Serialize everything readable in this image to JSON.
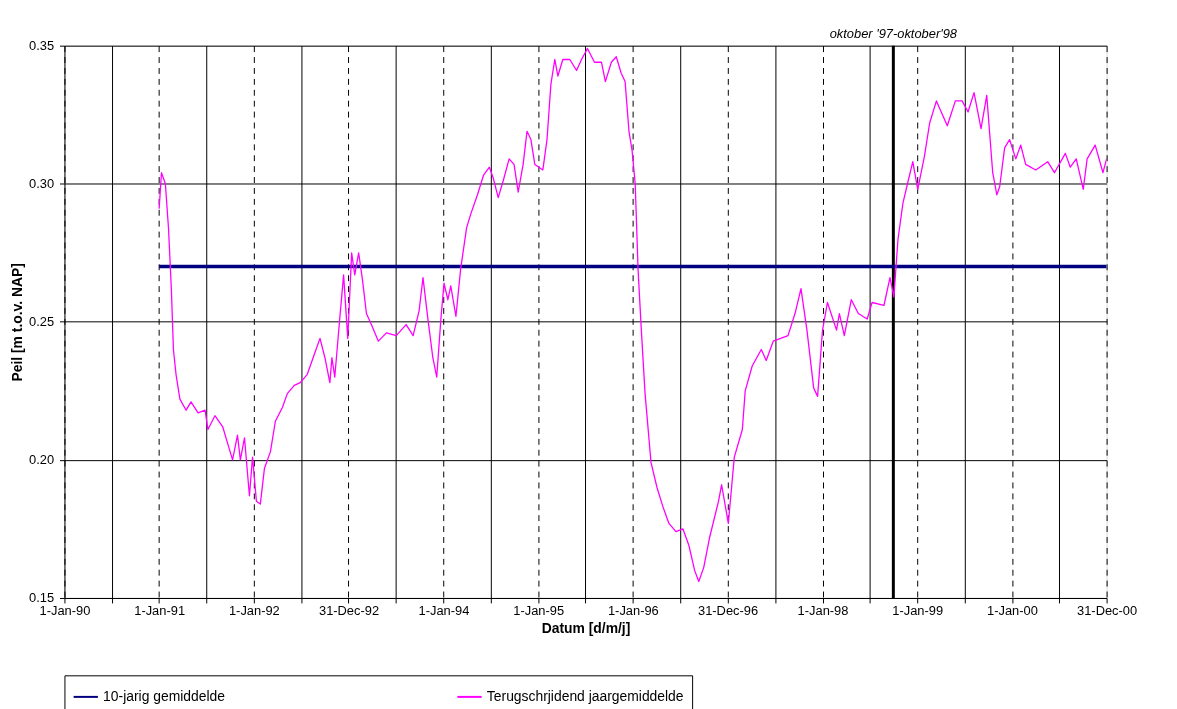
{
  "chart_data": {
    "type": "line",
    "xlabel": "Datum [d/m/j]",
    "ylabel": "Peil [m t.o.v. NAP]",
    "legend": "bottom",
    "grid": true,
    "xlim": [
      "1990-01-01",
      "2000-12-31"
    ],
    "ylim": [
      0.15,
      0.35
    ],
    "yticks": [
      {
        "value": 0.15,
        "label": "0.15"
      },
      {
        "value": 0.2,
        "label": "0.20"
      },
      {
        "value": 0.25,
        "label": "0.25"
      },
      {
        "value": 0.3,
        "label": "0.30"
      },
      {
        "value": 0.35,
        "label": "0.35"
      }
    ],
    "xticks": [
      {
        "value": "1990-01-01",
        "label": "1-Jan-90"
      },
      {
        "value": "1990-07-02",
        "label": null
      },
      {
        "value": "1991-01-01",
        "label": "1-Jan-91"
      },
      {
        "value": "1991-07-02",
        "label": null
      },
      {
        "value": "1992-01-01",
        "label": "1-Jan-92"
      },
      {
        "value": "1992-07-01",
        "label": null
      },
      {
        "value": "1992-12-31",
        "label": "31-Dec-92"
      },
      {
        "value": "1993-07-02",
        "label": null
      },
      {
        "value": "1994-01-01",
        "label": "1-Jan-94"
      },
      {
        "value": "1994-07-02",
        "label": null
      },
      {
        "value": "1995-01-01",
        "label": "1-Jan-95"
      },
      {
        "value": "1995-07-02",
        "label": null
      },
      {
        "value": "1996-01-01",
        "label": "1-Jan-96"
      },
      {
        "value": "1996-07-01",
        "label": null
      },
      {
        "value": "1996-12-31",
        "label": "31-Dec-96"
      },
      {
        "value": "1997-07-02",
        "label": null
      },
      {
        "value": "1998-01-01",
        "label": "1-Jan-98"
      },
      {
        "value": "1998-07-02",
        "label": null
      },
      {
        "value": "1999-01-01",
        "label": "1-Jan-99"
      },
      {
        "value": "1999-07-02",
        "label": null
      },
      {
        "value": "2000-01-01",
        "label": "1-Jan-00"
      },
      {
        "value": "2000-07-01",
        "label": null
      },
      {
        "value": "2000-12-31",
        "label": "31-Dec-00"
      }
    ],
    "ref_lines": [
      {
        "axis": "x",
        "value": "1998-10-01",
        "label": "oktober '97-oktober'98",
        "color": "#000000"
      }
    ],
    "series": [
      {
        "name": "10-jarig gemiddelde",
        "color": "#000080",
        "x": [
          "1991-01-01",
          "2000-12-31"
        ],
        "values": [
          0.27,
          0.27
        ]
      },
      {
        "name": "Terugschrjidend jaargemiddelde",
        "color": "#ff00ff",
        "x": [
          "1991-01-01",
          "1991-01-10",
          "1991-01-25",
          "1991-02-06",
          "1991-02-17",
          "1991-02-25",
          "1991-03-07",
          "1991-03-22",
          "1991-04-15",
          "1991-05-04",
          "1991-05-31",
          "1991-06-27",
          "1991-07-08",
          "1991-08-04",
          "1991-09-03",
          "1991-09-22",
          "1991-10-11",
          "1991-10-30",
          "1991-11-10",
          "1991-11-26",
          "1991-12-15",
          "1991-12-27",
          "1992-01-11",
          "1992-01-26",
          "1992-02-11",
          "1992-03-05",
          "1992-03-24",
          "1992-04-20",
          "1992-05-09",
          "1992-06-05",
          "1992-06-28",
          "1992-07-25",
          "1992-08-24",
          "1992-09-12",
          "1992-10-01",
          "1992-10-20",
          "1992-10-28",
          "1992-11-08",
          "1992-11-27",
          "1992-12-12",
          "1992-12-28",
          "1993-01-12",
          "1993-01-24",
          "1993-02-08",
          "1993-02-23",
          "1993-03-10",
          "1993-03-29",
          "1993-04-25",
          "1993-05-26",
          "1993-07-03",
          "1993-08-10",
          "1993-09-06",
          "1993-09-29",
          "1993-10-14",
          "1993-11-02",
          "1993-11-21",
          "1993-12-06",
          "1993-12-22",
          "1994-01-03",
          "1994-01-18",
          "1994-01-29",
          "1994-02-18",
          "1994-03-08",
          "1994-03-31",
          "1994-04-16",
          "1994-05-12",
          "1994-06-04",
          "1994-06-27",
          "1994-07-12",
          "1994-07-31",
          "1994-08-19",
          "1994-09-11",
          "1994-09-30",
          "1994-10-16",
          "1994-11-04",
          "1994-11-19",
          "1994-12-04",
          "1994-12-19",
          "1995-01-04",
          "1995-01-19",
          "1995-02-04",
          "1995-02-19",
          "1995-03-06",
          "1995-03-18",
          "1995-04-06",
          "1995-05-03",
          "1995-05-29",
          "1995-06-17",
          "1995-07-10",
          "1995-08-06",
          "1995-09-02",
          "1995-09-17",
          "1995-10-10",
          "1995-10-29",
          "1995-11-17",
          "1995-12-02",
          "1995-12-17",
          "1995-12-29",
          "1996-01-10",
          "1996-01-21",
          "1996-02-02",
          "1996-02-17",
          "1996-03-11",
          "1996-04-03",
          "1996-04-26",
          "1996-05-19",
          "1996-06-15",
          "1996-07-12",
          "1996-08-04",
          "1996-08-26",
          "1996-09-11",
          "1996-09-30",
          "1996-10-23",
          "1996-11-26",
          "1996-12-08",
          "1997-01-03",
          "1997-01-26",
          "1997-02-26",
          "1997-03-09",
          "1997-04-05",
          "1997-05-10",
          "1997-05-29",
          "1997-06-25",
          "1997-08-21",
          "1997-09-17",
          "1997-10-10",
          "1997-11-02",
          "1997-11-28",
          "1997-12-13",
          "1998-01-01",
          "1998-01-20",
          "1998-02-24",
          "1998-03-07",
          "1998-03-26",
          "1998-04-22",
          "1998-05-19",
          "1998-06-22",
          "1998-07-11",
          "1998-08-26",
          "1998-09-18",
          "1998-10-03",
          "1998-10-19",
          "1998-11-07",
          "1998-11-22",
          "1998-12-15",
          "1999-01-03",
          "1999-01-29",
          "1999-02-18",
          "1999-03-16",
          "1999-04-27",
          "1999-05-28",
          "1999-06-23",
          "1999-07-16",
          "1999-08-08",
          "1999-09-04",
          "1999-09-26",
          "1999-10-19",
          "1999-11-04",
          "1999-11-15",
          "1999-12-04",
          "1999-12-23",
          "2000-01-16",
          "2000-02-04",
          "2000-02-23",
          "2000-04-02",
          "2000-05-18",
          "2000-06-13",
          "2000-07-25",
          "2000-08-13",
          "2000-09-05",
          "2000-10-02",
          "2000-10-17",
          "2000-11-17",
          "2000-12-17",
          "2000-12-31"
        ],
        "values": [
          0.291,
          0.304,
          0.3,
          0.284,
          0.262,
          0.24,
          0.231,
          0.222,
          0.218,
          0.221,
          0.217,
          0.218,
          0.211,
          0.216,
          0.212,
          0.206,
          0.2,
          0.209,
          0.2,
          0.208,
          0.187,
          0.201,
          0.185,
          0.184,
          0.197,
          0.203,
          0.214,
          0.219,
          0.224,
          0.227,
          0.228,
          0.231,
          0.239,
          0.244,
          0.237,
          0.228,
          0.237,
          0.23,
          0.251,
          0.267,
          0.244,
          0.275,
          0.267,
          0.275,
          0.265,
          0.253,
          0.249,
          0.243,
          0.246,
          0.245,
          0.249,
          0.245,
          0.254,
          0.266,
          0.251,
          0.237,
          0.23,
          0.251,
          0.264,
          0.258,
          0.263,
          0.252,
          0.269,
          0.284,
          0.289,
          0.296,
          0.303,
          0.306,
          0.302,
          0.295,
          0.301,
          0.309,
          0.307,
          0.297,
          0.307,
          0.319,
          0.316,
          0.307,
          0.306,
          0.305,
          0.316,
          0.336,
          0.345,
          0.339,
          0.345,
          0.345,
          0.341,
          0.345,
          0.349,
          0.344,
          0.344,
          0.337,
          0.344,
          0.346,
          0.34,
          0.337,
          0.319,
          0.312,
          0.3,
          0.269,
          0.248,
          0.224,
          0.199,
          0.19,
          0.183,
          0.177,
          0.174,
          0.175,
          0.169,
          0.16,
          0.156,
          0.161,
          0.172,
          0.185,
          0.191,
          0.177,
          0.201,
          0.211,
          0.225,
          0.234,
          0.24,
          0.236,
          0.243,
          0.245,
          0.253,
          0.262,
          0.247,
          0.226,
          0.223,
          0.247,
          0.257,
          0.247,
          0.253,
          0.245,
          0.258,
          0.253,
          0.251,
          0.257,
          0.256,
          0.266,
          0.259,
          0.28,
          0.293,
          0.299,
          0.308,
          0.298,
          0.31,
          0.322,
          0.33,
          0.321,
          0.33,
          0.33,
          0.326,
          0.333,
          0.32,
          0.332,
          0.304,
          0.296,
          0.299,
          0.313,
          0.316,
          0.309,
          0.314,
          0.307,
          0.305,
          0.308,
          0.304,
          0.311,
          0.306,
          0.309,
          0.298,
          0.309,
          0.314,
          0.304,
          0.309
        ]
      }
    ]
  }
}
